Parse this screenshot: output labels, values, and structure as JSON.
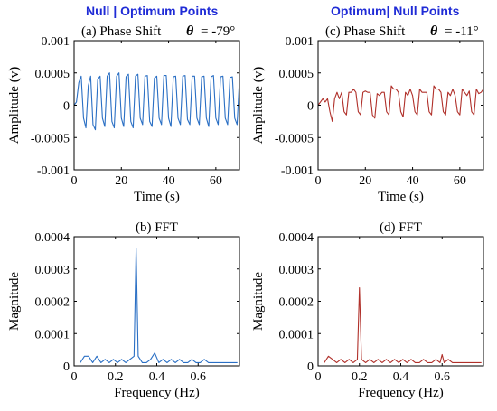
{
  "headers": {
    "left": "Null | Optimum Points",
    "right": "Optimum| Null Points"
  },
  "colors": {
    "header": "#1f2bd6",
    "blue_series": "#2a6fc4",
    "red_series": "#b0302a",
    "axes": "#000000"
  },
  "chart_data": [
    {
      "id": "a",
      "type": "line",
      "title_text": "(a) Phase Shift",
      "theta_symbol": "θ",
      "theta_value": "= -79°",
      "xlabel": "Time (s)",
      "ylabel": "Amplitude (v)",
      "xlim": [
        0,
        70
      ],
      "ylim": [
        -0.001,
        0.001
      ],
      "xticks": [
        0,
        20,
        40,
        60
      ],
      "xtick_labels": [
        "0",
        "20",
        "40",
        "60"
      ],
      "yticks": [
        0.001,
        0.0005,
        0,
        -0.0005,
        -0.001
      ],
      "ytick_labels": [
        "0.001",
        "0.0005",
        "0",
        "-0.0005",
        "-0.001"
      ],
      "grid": false,
      "series": [
        {
          "color": "#2a6fc4",
          "x": [
            0,
            1,
            2,
            3,
            4,
            5,
            6,
            7,
            8,
            9,
            10,
            11,
            12,
            13,
            14,
            15,
            16,
            17,
            18,
            19,
            20,
            21,
            22,
            23,
            24,
            25,
            26,
            27,
            28,
            29,
            30,
            31,
            32,
            33,
            34,
            35,
            36,
            37,
            38,
            39,
            40,
            41,
            42,
            43,
            44,
            45,
            46,
            47,
            48,
            49,
            50,
            51,
            52,
            53,
            54,
            55,
            56,
            57,
            58,
            59,
            60,
            61,
            62,
            63,
            64,
            65,
            66,
            67,
            68,
            69,
            70
          ],
          "y": [
            0,
            5e-05,
            0.00035,
            0.00045,
            -0.0002,
            -0.00035,
            0.0003,
            0.00045,
            -0.0003,
            -0.00038,
            0.0004,
            0.00045,
            -0.0002,
            -0.00033,
            0.00045,
            0.0005,
            -0.00025,
            -0.00035,
            0.00045,
            0.0005,
            -0.0002,
            -0.00033,
            0.00044,
            0.00048,
            -0.00025,
            -0.00035,
            0.00045,
            0.00048,
            -0.0002,
            -0.0003,
            0.00045,
            0.00046,
            -0.00025,
            -0.00033,
            0.00042,
            0.00045,
            -0.0002,
            -0.0003,
            0.00046,
            0.00046,
            -0.0002,
            -0.00033,
            0.00044,
            0.00045,
            -0.0002,
            -0.0003,
            0.00045,
            0.00046,
            -0.00022,
            -0.0003,
            0.00045,
            0.00045,
            -0.0002,
            -0.0003,
            0.00044,
            0.00045,
            -0.0002,
            -0.00033,
            0.00044,
            0.00046,
            -0.0002,
            -0.0003,
            0.00044,
            0.00045,
            -0.0002,
            -0.0003,
            0.00043,
            0.00044,
            -0.0002,
            -0.0003,
            0.0004
          ]
        }
      ]
    },
    {
      "id": "b",
      "type": "line",
      "title_text": "(b) FFT",
      "xlabel": "Frequency (Hz)",
      "ylabel": "Magnitude",
      "xlim": [
        0,
        0.8
      ],
      "ylim": [
        0,
        0.0004
      ],
      "xticks": [
        0,
        0.2,
        0.4,
        0.6
      ],
      "xtick_labels": [
        "0",
        "0.2",
        "0.4",
        "0.6"
      ],
      "yticks": [
        0.0004,
        0.0003,
        0.0002,
        0.0001,
        0
      ],
      "ytick_labels": [
        "0.0004",
        "0.0003",
        "0.0002",
        "0.0001",
        "0"
      ],
      "grid": false,
      "series": [
        {
          "color": "#2a6fc4",
          "x": [
            0.03,
            0.05,
            0.07,
            0.09,
            0.11,
            0.13,
            0.15,
            0.17,
            0.19,
            0.21,
            0.23,
            0.25,
            0.27,
            0.29,
            0.3,
            0.31,
            0.33,
            0.35,
            0.37,
            0.39,
            0.41,
            0.43,
            0.45,
            0.47,
            0.49,
            0.51,
            0.53,
            0.55,
            0.57,
            0.59,
            0.61,
            0.63,
            0.65,
            0.67,
            0.69,
            0.71,
            0.73,
            0.75,
            0.77,
            0.79
          ],
          "y": [
            1e-05,
            3e-05,
            3e-05,
            1e-05,
            3e-05,
            1e-05,
            2e-05,
            1e-05,
            2e-05,
            1e-05,
            2e-05,
            1e-05,
            2e-05,
            3e-05,
            0.000365,
            3e-05,
            1e-05,
            1e-05,
            2e-05,
            4e-05,
            1e-05,
            2e-05,
            1e-05,
            2e-05,
            1e-05,
            2e-05,
            1e-05,
            1e-05,
            2e-05,
            1e-05,
            1e-05,
            2e-05,
            1e-05,
            1e-05,
            1e-05,
            1e-05,
            1e-05,
            1e-05,
            1e-05,
            1e-05
          ]
        }
      ]
    },
    {
      "id": "c",
      "type": "line",
      "title_text": "(c) Phase Shift",
      "theta_symbol": "θ",
      "theta_value": "= -11°",
      "xlabel": "Time (s)",
      "ylabel": "Amplitude (v)",
      "xlim": [
        0,
        70
      ],
      "ylim": [
        -0.001,
        0.001
      ],
      "xticks": [
        0,
        20,
        40,
        60
      ],
      "xtick_labels": [
        "0",
        "20",
        "40",
        "60"
      ],
      "yticks": [
        0.001,
        0.0005,
        0,
        -0.0005,
        -0.001
      ],
      "ytick_labels": [
        "0.001",
        "0.0005",
        "0",
        "-0.0005",
        "-0.001"
      ],
      "grid": false,
      "series": [
        {
          "color": "#b0302a",
          "x": [
            0,
            1,
            2,
            3,
            4,
            5,
            6,
            7,
            8,
            9,
            10,
            11,
            12,
            13,
            14,
            15,
            16,
            17,
            18,
            19,
            20,
            21,
            22,
            23,
            24,
            25,
            26,
            27,
            28,
            29,
            30,
            31,
            32,
            33,
            34,
            35,
            36,
            37,
            38,
            39,
            40,
            41,
            42,
            43,
            44,
            45,
            46,
            47,
            48,
            49,
            50,
            51,
            52,
            53,
            54,
            55,
            56,
            57,
            58,
            59,
            60,
            61,
            62,
            63,
            64,
            65,
            66,
            67,
            68,
            69,
            70
          ],
          "y": [
            0,
            5e-05,
            0.0001,
            5e-05,
            0.0001,
            -0.0001,
            -0.00025,
            0.0001,
            0.0002,
            0.0001,
            0.0002,
            -0.0001,
            -0.00015,
            0.0002,
            0.0002,
            0.00025,
            0.0002,
            -0.0001,
            -0.00015,
            0.0002,
            0.00022,
            0.0002,
            0.0002,
            -0.00015,
            -0.0002,
            0.00018,
            0.00015,
            0.0002,
            0.0002,
            -0.0001,
            -0.00015,
            0.0003,
            0.00025,
            0.00025,
            0.0002,
            -0.0001,
            -0.00018,
            0.0002,
            0.00015,
            0.00025,
            0.00015,
            -0.0001,
            -0.00015,
            0.00025,
            0.0002,
            0.0002,
            0.0002,
            -0.0001,
            -0.00015,
            0.0003,
            0.00025,
            0.00025,
            0.0002,
            -0.0001,
            -0.00015,
            0.0002,
            0.00015,
            0.00025,
            0.00015,
            -0.0001,
            -0.00015,
            0.00025,
            0.0002,
            0.00015,
            0.00022,
            -0.0001,
            -0.00015,
            0.00025,
            0.00018,
            0.0002,
            0.00025
          ]
        }
      ]
    },
    {
      "id": "d",
      "type": "line",
      "title_text": "(d) FFT",
      "xlabel": "Frequency (Hz)",
      "ylabel": "Magnitude",
      "xlim": [
        0,
        0.8
      ],
      "ylim": [
        0,
        0.0004
      ],
      "xticks": [
        0,
        0.2,
        0.4,
        0.6
      ],
      "xtick_labels": [
        "0",
        "0.2",
        "0.4",
        "0.6"
      ],
      "yticks": [
        0.0004,
        0.0003,
        0.0002,
        0.0001,
        0
      ],
      "ytick_labels": [
        "0.0004",
        "0.0003",
        "0.0002",
        "0.0001",
        "0"
      ],
      "grid": false,
      "series": [
        {
          "color": "#b0302a",
          "x": [
            0.03,
            0.05,
            0.07,
            0.09,
            0.11,
            0.13,
            0.15,
            0.17,
            0.19,
            0.2,
            0.21,
            0.23,
            0.25,
            0.27,
            0.29,
            0.31,
            0.33,
            0.35,
            0.37,
            0.39,
            0.41,
            0.43,
            0.45,
            0.47,
            0.49,
            0.51,
            0.53,
            0.55,
            0.57,
            0.59,
            0.6,
            0.61,
            0.63,
            0.65,
            0.67,
            0.69,
            0.71,
            0.73,
            0.75,
            0.77,
            0.79
          ],
          "y": [
            1e-05,
            3e-05,
            2e-05,
            1e-05,
            2e-05,
            1e-05,
            2e-05,
            1e-05,
            2e-05,
            0.000242,
            2e-05,
            1e-05,
            2e-05,
            1e-05,
            2e-05,
            1e-05,
            2e-05,
            1e-05,
            2e-05,
            1e-05,
            2e-05,
            1e-05,
            2e-05,
            1e-05,
            1e-05,
            2e-05,
            1e-05,
            1e-05,
            2e-05,
            1e-05,
            3.5e-05,
            1e-05,
            2e-05,
            1e-05,
            1e-05,
            1e-05,
            1e-05,
            1e-05,
            1e-05,
            1e-05,
            1e-05
          ]
        }
      ]
    }
  ]
}
